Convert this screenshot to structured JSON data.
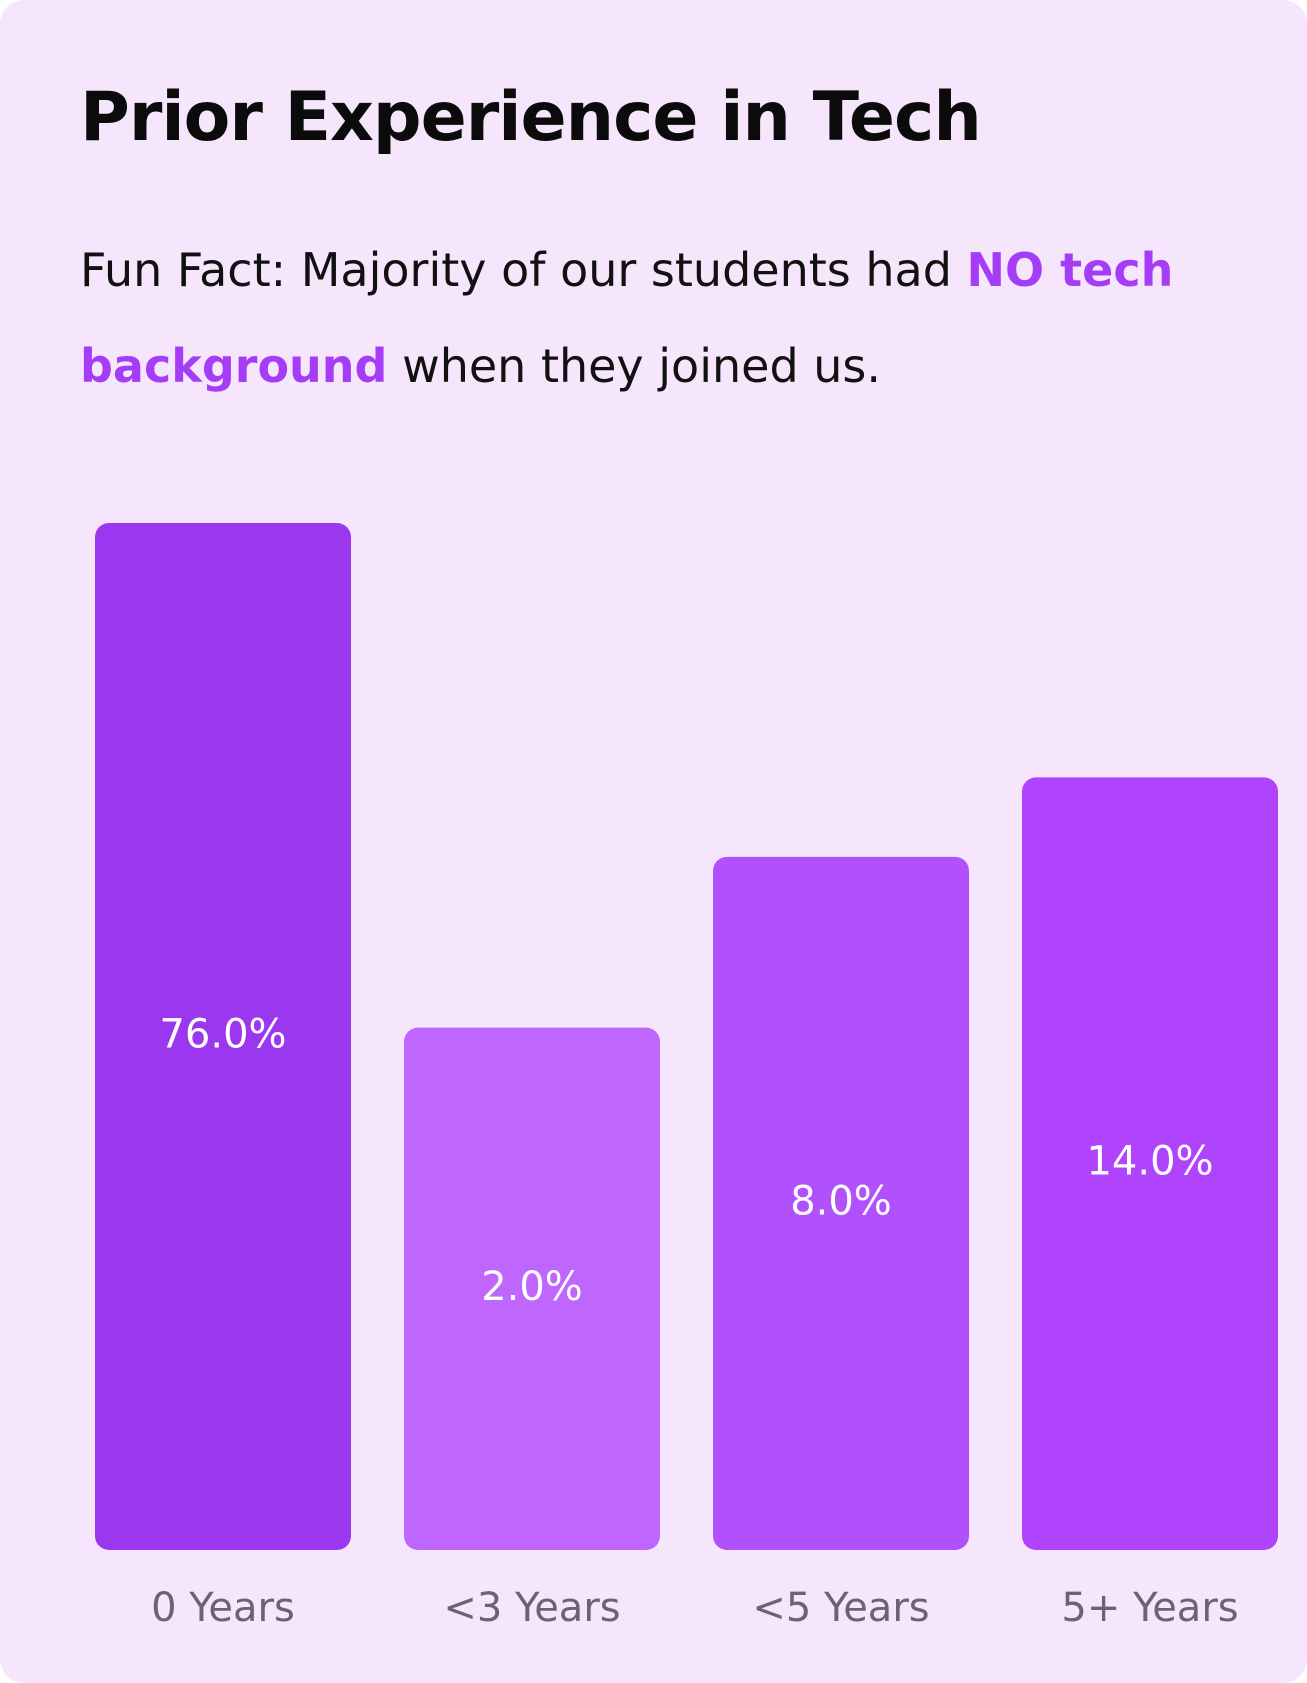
{
  "chart_data": {
    "type": "bar",
    "title": "Prior Experience in Tech",
    "subtitle": [
      "Fun Fact: Majority of our students had ",
      "NO tech background",
      " when they joined us."
    ],
    "categories": [
      "0 Years",
      "<3 Years",
      "<5 Years",
      "5+ Years"
    ],
    "values": [
      76.0,
      2.0,
      8.0,
      14.0
    ],
    "value_labels": [
      "76.0%",
      "2.0%",
      "8.0%",
      "14.0%"
    ],
    "colors": [
      "#9b37ef",
      "#bf66fe",
      "#b151fd",
      "#b044fd"
    ]
  }
}
